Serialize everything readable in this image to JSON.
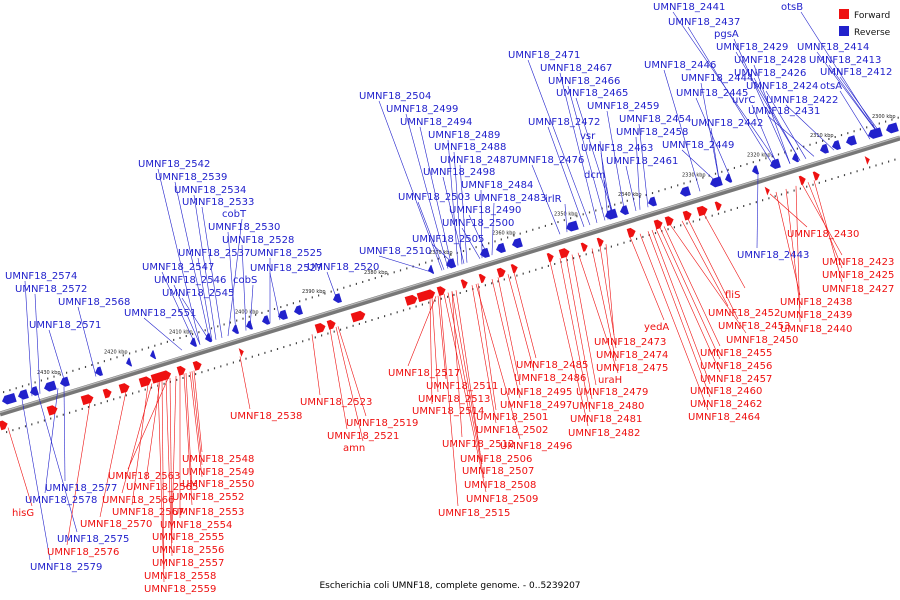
{
  "caption": "Escherichia coli UMNF18, complete genome. - 0..5239207",
  "legend": {
    "forward_label": "Forward",
    "reverse_label": "Reverse",
    "forward_color": "#ee1111",
    "reverse_color": "#2222cc"
  },
  "backbone_color": "#777777",
  "ticks": [
    "2300 kbp",
    "2310 kbp",
    "2320 kbp",
    "2330 kbp",
    "2340 kbp",
    "2350 kbp",
    "2360 kbp",
    "2370 kbp",
    "2380 kbp",
    "2390 kbp",
    "2400 kbp",
    "2410 kbp",
    "2420 kbp",
    "2430 kbp"
  ],
  "reverse_labels": [
    "UMNF18_2441",
    "otsB",
    "UMNF18_2437",
    "pgsA",
    "UMNF18_2429",
    "UMNF18_2414",
    "UMNF18_2413",
    "UMNF18_2412",
    "UMNF18_2446",
    "UMNF18_2428",
    "UMNF18_2444",
    "UMNF18_2426",
    "UMNF18_2424",
    "otsA",
    "UMNF18_2445",
    "uvrC",
    "UMNF18_2422",
    "UMNF18_2431",
    "UMNF18_2442",
    "UMNF18_2449",
    "UMNF18_2471",
    "UMNF18_2467",
    "UMNF18_2466",
    "UMNF18_2465",
    "UMNF18_2459",
    "UMNF18_2472",
    "UMNF18_2454",
    "vsr",
    "UMNF18_2458",
    "UMNF18_2463",
    "UMNF18_2476",
    "UMNF18_2461",
    "dcm",
    "irlR",
    "UMNF18_2504",
    "UMNF18_2499",
    "UMNF18_2494",
    "UMNF18_2489",
    "UMNF18_2488",
    "UMNF18_2487",
    "UMNF18_2498",
    "UMNF18_2484",
    "UMNF18_2503",
    "UMNF18_2483",
    "UMNF18_2490",
    "UMNF18_2500",
    "UMNF18_2505",
    "UMNF18_2510",
    "UMNF18_2520",
    "UMNF18_2542",
    "UMNF18_2539",
    "UMNF18_2534",
    "UMNF18_2533",
    "cobT",
    "UMNF18_2530",
    "UMNF18_2528",
    "UMNF18_2537",
    "UMNF18_2525",
    "UMNF18_2547",
    "UMNF18_2527",
    "UMNF18_2546",
    "cobS",
    "UMNF18_2545",
    "UMNF18_2551",
    "UMNF18_2574",
    "UMNF18_2572",
    "UMNF18_2568",
    "UMNF18_2571",
    "UMNF18_2443",
    "UMNF18_2577",
    "UMNF18_2578",
    "UMNF18_2575",
    "UMNF18_2579"
  ],
  "forward_labels": [
    "UMNF18_2430",
    "UMNF18_2423",
    "UMNF18_2425",
    "UMNF18_2427",
    "UMNF18_2438",
    "UMNF18_2439",
    "UMNF18_2440",
    "fliS",
    "UMNF18_2452",
    "UMNF18_2453",
    "UMNF18_2450",
    "UMNF18_2455",
    "UMNF18_2456",
    "UMNF18_2457",
    "UMNF18_2460",
    "UMNF18_2462",
    "UMNF18_2464",
    "yedA",
    "UMNF18_2473",
    "UMNF18_2474",
    "UMNF18_2475",
    "uraH",
    "UMNF18_2479",
    "UMNF18_2480",
    "UMNF18_2481",
    "UMNF18_2482",
    "UMNF18_2485",
    "UMNF18_2486",
    "UMNF18_2495",
    "UMNF18_2497",
    "UMNF18_2501",
    "UMNF18_2502",
    "UMNF18_2496",
    "UMNF18_2517",
    "UMNF18_2511",
    "UMNF18_2513",
    "UMNF18_2514",
    "UMNF18_2512",
    "UMNF18_2506",
    "UMNF18_2507",
    "UMNF18_2508",
    "UMNF18_2509",
    "UMNF18_2515",
    "UMNF18_2523",
    "UMNF18_2519",
    "UMNF18_2521",
    "amn",
    "UMNF18_2538",
    "UMNF18_2548",
    "UMNF18_2549",
    "UMNF18_2550",
    "UMNF18_2563",
    "UMNF18_2565",
    "UMNF18_2552",
    "UMNF18_2566",
    "UMNF18_2553",
    "UMNF18_2567",
    "UMNF18_2554",
    "UMNF18_2570",
    "UMNF18_2555",
    "UMNF18_2556",
    "UMNF18_2557",
    "UMNF18_2558",
    "UMNF18_2559",
    "UMNF18_2576",
    "hisG"
  ]
}
